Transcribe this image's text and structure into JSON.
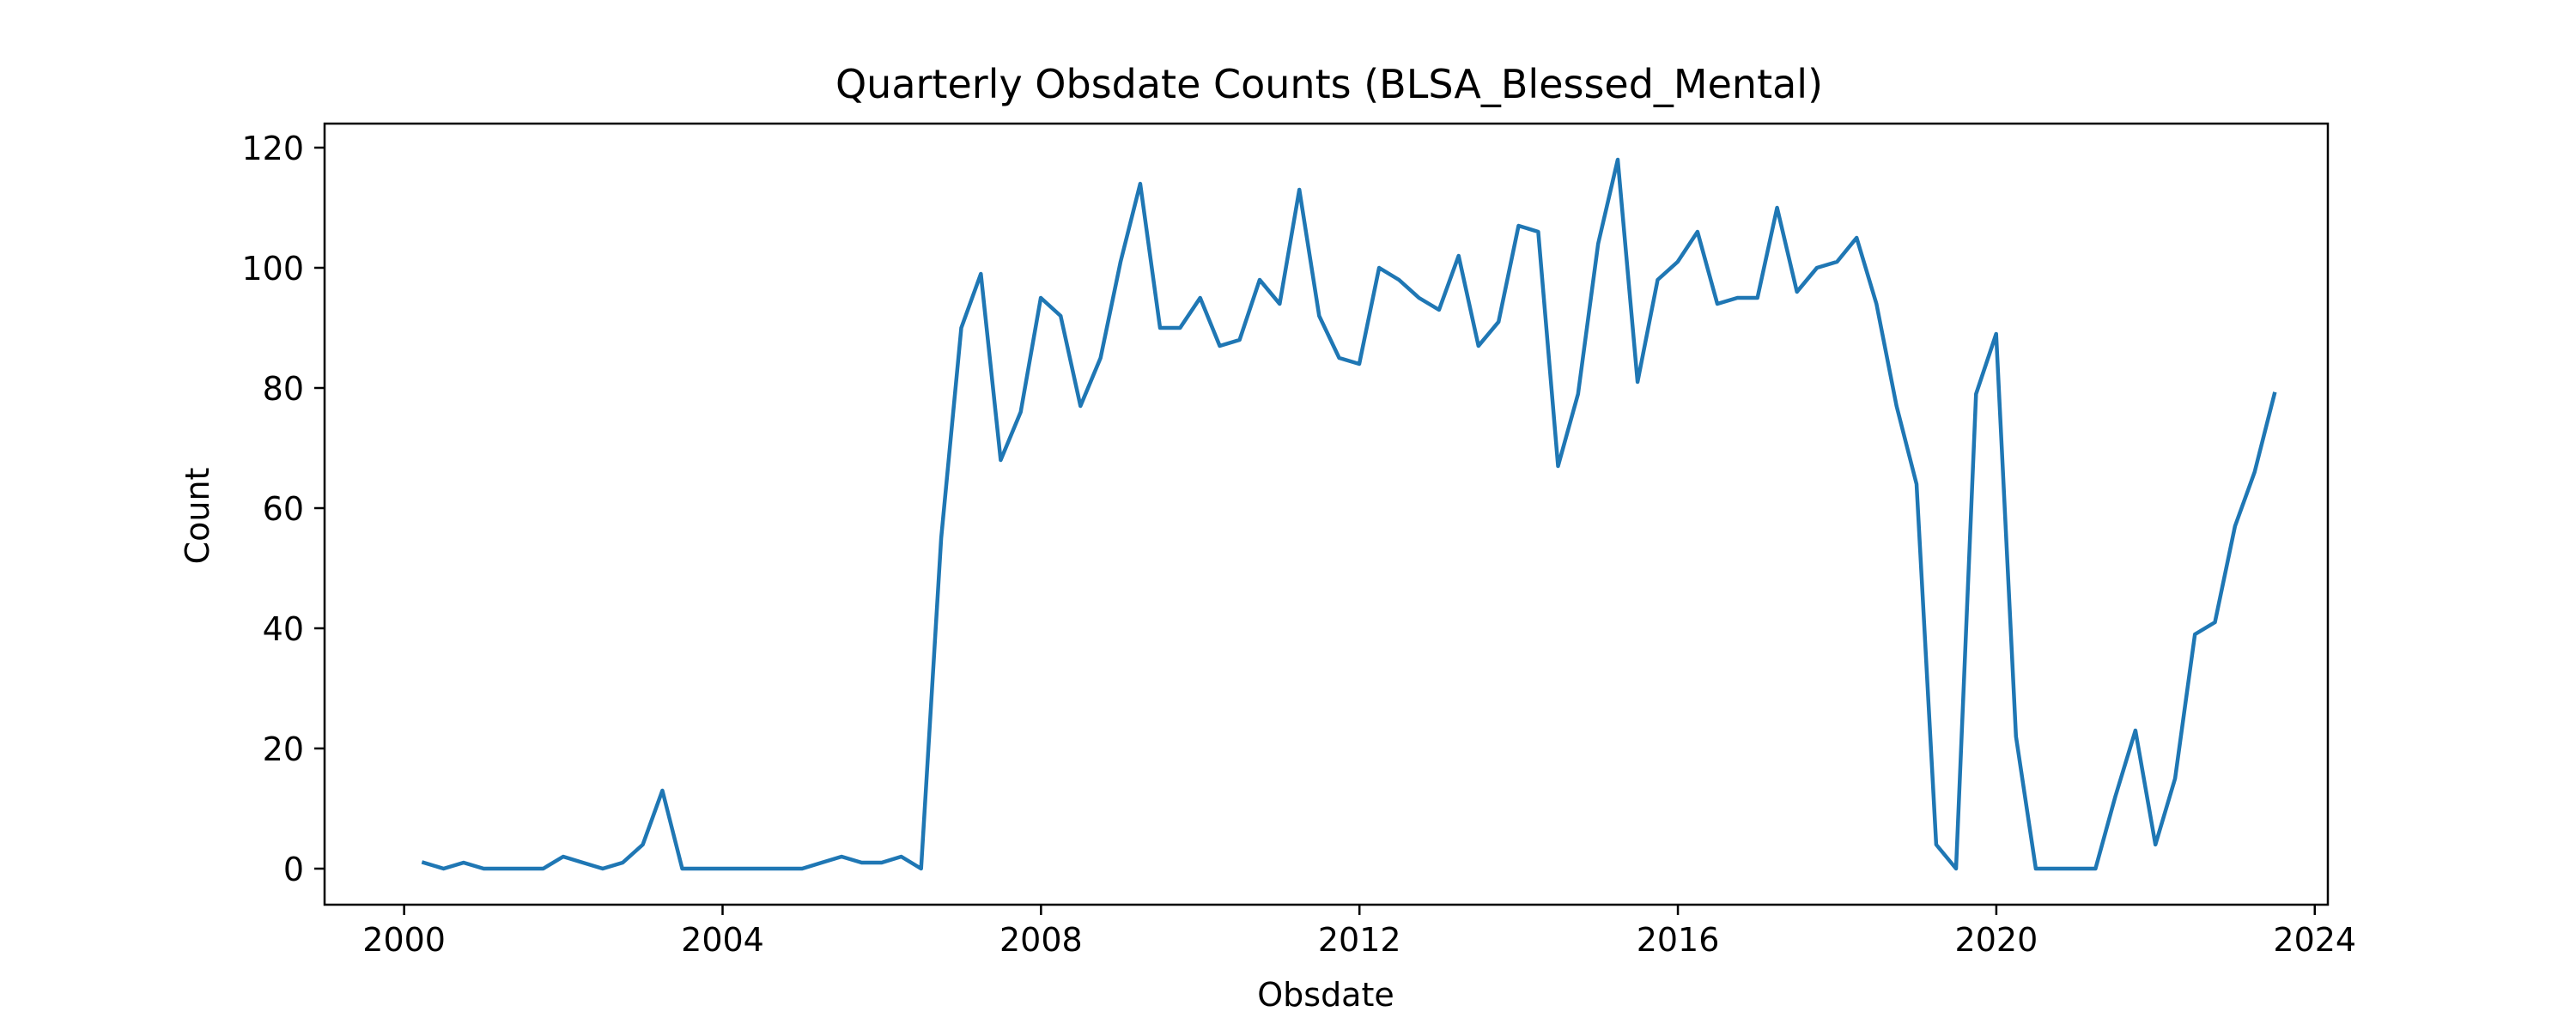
{
  "chart_data": {
    "type": "line",
    "title": "Quarterly Obsdate Counts (BLSA_Blessed_Mental)",
    "xlabel": "Obsdate",
    "ylabel": "Count",
    "x_axis_kind": "date",
    "xlim": [
      "1999-01-01",
      "2024-03-01"
    ],
    "ylim": [
      -6,
      124
    ],
    "x_ticks": [
      {
        "label": "2000",
        "value": "2000-01-01"
      },
      {
        "label": "2004",
        "value": "2004-01-01"
      },
      {
        "label": "2008",
        "value": "2008-01-01"
      },
      {
        "label": "2012",
        "value": "2012-01-01"
      },
      {
        "label": "2016",
        "value": "2016-01-01"
      },
      {
        "label": "2020",
        "value": "2020-01-01"
      },
      {
        "label": "2024",
        "value": "2024-01-01"
      }
    ],
    "y_ticks": [
      0,
      20,
      40,
      60,
      80,
      100,
      120
    ],
    "grid": false,
    "legend": "none",
    "series": [
      {
        "color": "#1f77b4",
        "points": [
          [
            "2000-03-31",
            1
          ],
          [
            "2000-06-30",
            0
          ],
          [
            "2000-09-30",
            1
          ],
          [
            "2000-12-31",
            0
          ],
          [
            "2001-03-31",
            0
          ],
          [
            "2001-06-30",
            0
          ],
          [
            "2001-09-30",
            0
          ],
          [
            "2001-12-31",
            2
          ],
          [
            "2002-03-31",
            1
          ],
          [
            "2002-06-30",
            0
          ],
          [
            "2002-09-30",
            1
          ],
          [
            "2002-12-31",
            4
          ],
          [
            "2003-03-31",
            13
          ],
          [
            "2003-06-30",
            0
          ],
          [
            "2003-09-30",
            0
          ],
          [
            "2003-12-31",
            0
          ],
          [
            "2004-03-31",
            0
          ],
          [
            "2004-06-30",
            0
          ],
          [
            "2004-09-30",
            0
          ],
          [
            "2004-12-31",
            0
          ],
          [
            "2005-03-31",
            1
          ],
          [
            "2005-06-30",
            2
          ],
          [
            "2005-09-30",
            1
          ],
          [
            "2005-12-31",
            1
          ],
          [
            "2006-03-31",
            2
          ],
          [
            "2006-06-30",
            0
          ],
          [
            "2006-09-30",
            55
          ],
          [
            "2006-12-31",
            90
          ],
          [
            "2007-03-31",
            99
          ],
          [
            "2007-06-30",
            68
          ],
          [
            "2007-09-30",
            76
          ],
          [
            "2007-12-31",
            95
          ],
          [
            "2008-03-31",
            92
          ],
          [
            "2008-06-30",
            77
          ],
          [
            "2008-09-30",
            85
          ],
          [
            "2008-12-31",
            101
          ],
          [
            "2009-03-31",
            114
          ],
          [
            "2009-06-30",
            90
          ],
          [
            "2009-09-30",
            90
          ],
          [
            "2009-12-31",
            95
          ],
          [
            "2010-03-31",
            87
          ],
          [
            "2010-06-30",
            88
          ],
          [
            "2010-09-30",
            98
          ],
          [
            "2010-12-31",
            94
          ],
          [
            "2011-03-31",
            113
          ],
          [
            "2011-06-30",
            92
          ],
          [
            "2011-09-30",
            85
          ],
          [
            "2011-12-31",
            84
          ],
          [
            "2012-03-31",
            100
          ],
          [
            "2012-06-30",
            98
          ],
          [
            "2012-09-30",
            95
          ],
          [
            "2012-12-31",
            93
          ],
          [
            "2013-03-31",
            102
          ],
          [
            "2013-06-30",
            87
          ],
          [
            "2013-09-30",
            91
          ],
          [
            "2013-12-31",
            107
          ],
          [
            "2014-03-31",
            106
          ],
          [
            "2014-06-30",
            67
          ],
          [
            "2014-09-30",
            79
          ],
          [
            "2014-12-31",
            104
          ],
          [
            "2015-03-31",
            118
          ],
          [
            "2015-06-30",
            81
          ],
          [
            "2015-09-30",
            98
          ],
          [
            "2015-12-31",
            101
          ],
          [
            "2016-03-31",
            106
          ],
          [
            "2016-06-30",
            94
          ],
          [
            "2016-09-30",
            95
          ],
          [
            "2016-12-31",
            95
          ],
          [
            "2017-03-31",
            110
          ],
          [
            "2017-06-30",
            96
          ],
          [
            "2017-09-30",
            100
          ],
          [
            "2017-12-31",
            101
          ],
          [
            "2018-03-31",
            105
          ],
          [
            "2018-06-30",
            94
          ],
          [
            "2018-09-30",
            77
          ],
          [
            "2018-12-31",
            64
          ],
          [
            "2019-03-31",
            4
          ],
          [
            "2019-06-30",
            0
          ],
          [
            "2019-09-30",
            79
          ],
          [
            "2019-12-31",
            89
          ],
          [
            "2020-03-31",
            22
          ],
          [
            "2020-06-30",
            0
          ],
          [
            "2020-09-30",
            0
          ],
          [
            "2020-12-31",
            0
          ],
          [
            "2021-03-31",
            0
          ],
          [
            "2021-06-30",
            12
          ],
          [
            "2021-09-30",
            23
          ],
          [
            "2021-12-31",
            4
          ],
          [
            "2022-03-31",
            15
          ],
          [
            "2022-06-30",
            39
          ],
          [
            "2022-09-30",
            41
          ],
          [
            "2022-12-31",
            57
          ],
          [
            "2023-03-31",
            66
          ],
          [
            "2023-06-30",
            79
          ]
        ]
      }
    ]
  }
}
